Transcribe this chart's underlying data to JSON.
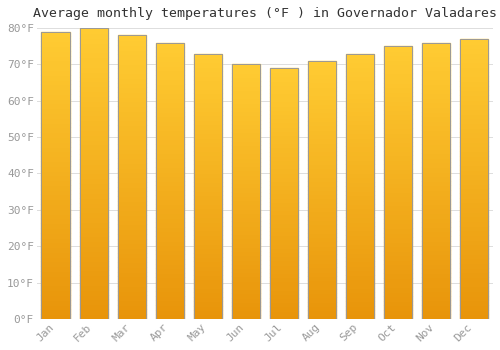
{
  "title": "Average monthly temperatures (°F ) in Governador Valadares",
  "months": [
    "Jan",
    "Feb",
    "Mar",
    "Apr",
    "May",
    "Jun",
    "Jul",
    "Aug",
    "Sep",
    "Oct",
    "Nov",
    "Dec"
  ],
  "values": [
    79,
    80,
    78,
    76,
    73,
    70,
    69,
    71,
    73,
    75,
    76,
    77
  ],
  "ylim": [
    0,
    80
  ],
  "yticks": [
    0,
    10,
    20,
    30,
    40,
    50,
    60,
    70,
    80
  ],
  "ytick_labels": [
    "0°F",
    "10°F",
    "20°F",
    "30°F",
    "40°F",
    "50°F",
    "60°F",
    "70°F",
    "80°F"
  ],
  "bar_color_top": "#FFCC33",
  "bar_color_bottom": "#E8940A",
  "bar_edge_color": "#999999",
  "background_color": "#FFFFFF",
  "grid_color": "#DDDDDD",
  "title_fontsize": 9.5,
  "tick_fontsize": 8,
  "font_color": "#999999",
  "title_color": "#333333"
}
